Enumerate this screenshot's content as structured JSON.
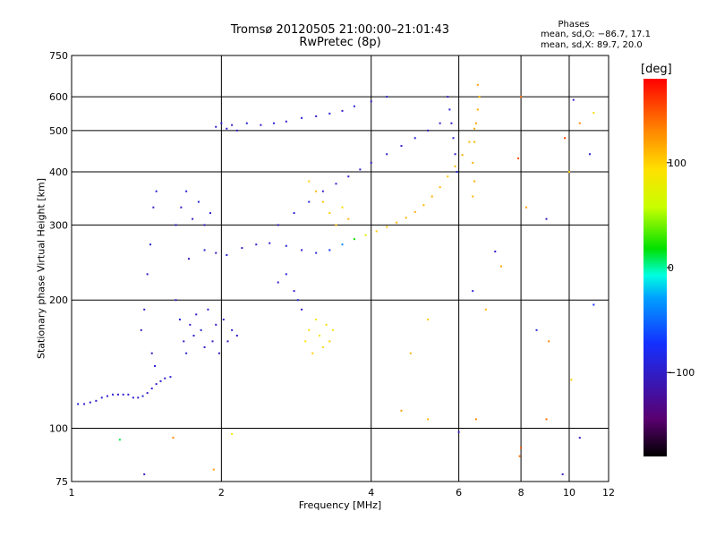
{
  "header": {
    "title_line1": "Tromsø 20120505 21:00:00–21:01:43",
    "title_line2": "RwPretec (8p)"
  },
  "stats": {
    "title": "Phases",
    "line_o": "mean, sd,O: −86.7, 17.1",
    "line_x": "mean, sd,X:  89.7, 20.0"
  },
  "colorbar": {
    "unit": "[deg]",
    "tick_labels": [
      "100",
      "0",
      "−100"
    ],
    "tick_values": [
      100,
      0,
      -100
    ],
    "range": [
      -180,
      180
    ],
    "colors": [
      "#000000",
      "#5a0070",
      "#1430ff",
      "#00a0ff",
      "#00ffe0",
      "#00e000",
      "#c8ff00",
      "#ffe000",
      "#ff8000",
      "#ff0000"
    ]
  },
  "chart_data": {
    "type": "scatter",
    "title": "Tromsø 20120505 21:00:00–21:01:43",
    "subtitle": "RwPretec (8p)",
    "xlabel": "Frequency [MHz]",
    "ylabel": "Stationary phase Virtual Height [km]",
    "x_scale": "log",
    "y_scale": "log",
    "xlim": [
      1,
      12
    ],
    "ylim": [
      75,
      750
    ],
    "x_ticks": [
      1,
      2,
      4,
      6,
      8,
      10,
      12
    ],
    "x_tick_labels": [
      "1",
      "2",
      "4",
      "6",
      "8",
      "10",
      "12"
    ],
    "x_gridlines": [
      2,
      4,
      6,
      8,
      10
    ],
    "y_ticks": [
      75,
      100,
      200,
      300,
      400,
      500,
      600,
      750
    ],
    "y_tick_labels": [
      "75",
      "100",
      "200",
      "300",
      "400",
      "500",
      "600",
      "750"
    ],
    "y_gridlines": [
      100,
      200,
      300,
      400,
      500,
      600
    ],
    "grid": true,
    "color_encodes": "phase [deg]",
    "series": [
      {
        "points": [
          [
            1.03,
            114,
            -95
          ],
          [
            1.06,
            114,
            -100
          ],
          [
            1.09,
            115,
            -95
          ],
          [
            1.12,
            116,
            -100
          ],
          [
            1.15,
            118,
            -95
          ],
          [
            1.18,
            119,
            -100
          ],
          [
            1.21,
            120,
            -95
          ],
          [
            1.24,
            120,
            -100
          ],
          [
            1.27,
            120,
            -95
          ],
          [
            1.3,
            120,
            -100
          ],
          [
            1.33,
            118,
            -95
          ],
          [
            1.36,
            118,
            -100
          ],
          [
            1.39,
            119,
            -95
          ],
          [
            1.42,
            121,
            -100
          ],
          [
            1.45,
            124,
            -95
          ],
          [
            1.48,
            127,
            -100
          ],
          [
            1.51,
            129,
            -95
          ],
          [
            1.54,
            131,
            -100
          ],
          [
            1.58,
            132,
            -95
          ],
          [
            1.38,
            170,
            -100
          ],
          [
            1.4,
            190,
            -95
          ],
          [
            1.42,
            230,
            -100
          ],
          [
            1.44,
            270,
            -95
          ],
          [
            1.46,
            330,
            -100
          ],
          [
            1.48,
            360,
            -95
          ],
          [
            1.45,
            150,
            -100
          ],
          [
            1.47,
            140,
            -95
          ],
          [
            1.62,
            200,
            -100
          ],
          [
            1.65,
            180,
            -95
          ],
          [
            1.68,
            160,
            -100
          ],
          [
            1.7,
            150,
            -95
          ],
          [
            1.73,
            175,
            -100
          ],
          [
            1.76,
            165,
            -95
          ],
          [
            1.78,
            185,
            -100
          ],
          [
            1.82,
            170,
            -95
          ],
          [
            1.85,
            155,
            -100
          ],
          [
            1.88,
            190,
            -95
          ],
          [
            1.92,
            160,
            -100
          ],
          [
            1.95,
            175,
            -95
          ],
          [
            1.98,
            150,
            -100
          ],
          [
            2.02,
            180,
            -95
          ],
          [
            2.06,
            160,
            -100
          ],
          [
            2.1,
            170,
            -95
          ],
          [
            2.15,
            165,
            -100
          ],
          [
            1.62,
            300,
            -95
          ],
          [
            1.66,
            330,
            -100
          ],
          [
            1.7,
            360,
            -95
          ],
          [
            1.75,
            310,
            -100
          ],
          [
            1.8,
            340,
            -95
          ],
          [
            1.85,
            300,
            -100
          ],
          [
            1.9,
            320,
            -95
          ],
          [
            1.72,
            250,
            -100
          ],
          [
            1.85,
            262,
            -95
          ],
          [
            1.95,
            258,
            -100
          ],
          [
            2.05,
            255,
            -95
          ],
          [
            2.2,
            265,
            -100
          ],
          [
            2.35,
            270,
            -95
          ],
          [
            2.5,
            272,
            -100
          ],
          [
            2.7,
            268,
            -95
          ],
          [
            2.9,
            262,
            -100
          ],
          [
            3.1,
            258,
            -90
          ],
          [
            3.3,
            262,
            -70
          ],
          [
            3.5,
            270,
            -40
          ],
          [
            3.7,
            278,
            20
          ],
          [
            3.9,
            284,
            80
          ],
          [
            4.1,
            290,
            100
          ],
          [
            4.3,
            297,
            105
          ],
          [
            4.5,
            304,
            110
          ],
          [
            4.7,
            312,
            110
          ],
          [
            4.9,
            322,
            115
          ],
          [
            5.1,
            334,
            110
          ],
          [
            5.3,
            350,
            115
          ],
          [
            5.5,
            368,
            110
          ],
          [
            5.7,
            390,
            105
          ],
          [
            5.9,
            412,
            110
          ],
          [
            6.1,
            438,
            115
          ],
          [
            6.3,
            470,
            110
          ],
          [
            6.45,
            505,
            115
          ],
          [
            2.6,
            300,
            -100
          ],
          [
            2.8,
            320,
            -95
          ],
          [
            3.0,
            340,
            -90
          ],
          [
            3.2,
            360,
            -100
          ],
          [
            3.4,
            375,
            -95
          ],
          [
            3.6,
            390,
            -100
          ],
          [
            3.8,
            405,
            -95
          ],
          [
            4.0,
            420,
            -100
          ],
          [
            4.3,
            440,
            -95
          ],
          [
            4.6,
            460,
            -100
          ],
          [
            4.9,
            480,
            -95
          ],
          [
            5.2,
            500,
            -100
          ],
          [
            5.5,
            520,
            -95
          ],
          [
            1.95,
            510,
            -100
          ],
          [
            2.0,
            520,
            -95
          ],
          [
            2.05,
            505,
            -100
          ],
          [
            2.1,
            515,
            -95
          ],
          [
            2.15,
            500,
            -100
          ],
          [
            2.25,
            520,
            -95
          ],
          [
            2.4,
            515,
            -100
          ],
          [
            2.55,
            520,
            -95
          ],
          [
            2.7,
            525,
            -100
          ],
          [
            2.9,
            535,
            -95
          ],
          [
            3.1,
            540,
            -100
          ],
          [
            3.3,
            548,
            -95
          ],
          [
            3.5,
            556,
            -100
          ],
          [
            3.7,
            570,
            -95
          ],
          [
            4.0,
            585,
            -100
          ],
          [
            4.3,
            600,
            -95
          ],
          [
            2.95,
            160,
            90
          ],
          [
            3.0,
            170,
            95
          ],
          [
            3.05,
            150,
            100
          ],
          [
            3.1,
            180,
            85
          ],
          [
            3.15,
            165,
            90
          ],
          [
            3.2,
            155,
            95
          ],
          [
            3.25,
            175,
            90
          ],
          [
            3.3,
            160,
            100
          ],
          [
            3.35,
            170,
            85
          ],
          [
            3.0,
            380,
            100
          ],
          [
            3.1,
            360,
            110
          ],
          [
            3.2,
            340,
            105
          ],
          [
            3.3,
            320,
            100
          ],
          [
            3.4,
            300,
            105
          ],
          [
            3.5,
            330,
            95
          ],
          [
            3.6,
            310,
            110
          ],
          [
            6.4,
            420,
            115
          ],
          [
            6.45,
            470,
            110
          ],
          [
            6.5,
            520,
            120
          ],
          [
            6.55,
            560,
            115
          ],
          [
            6.6,
            600,
            110
          ],
          [
            6.55,
            640,
            120
          ],
          [
            6.45,
            380,
            115
          ],
          [
            6.4,
            350,
            110
          ],
          [
            5.7,
            600,
            -100
          ],
          [
            5.75,
            560,
            -95
          ],
          [
            5.8,
            520,
            -100
          ],
          [
            5.85,
            480,
            -95
          ],
          [
            5.9,
            440,
            -100
          ],
          [
            5.95,
            400,
            -95
          ],
          [
            2.8,
            210,
            -100
          ],
          [
            2.85,
            200,
            -95
          ],
          [
            2.9,
            190,
            -100
          ],
          [
            2.7,
            230,
            -95
          ],
          [
            2.6,
            220,
            -100
          ],
          [
            8.0,
            600,
            140
          ],
          [
            7.9,
            430,
            150
          ],
          [
            10.2,
            590,
            -100
          ],
          [
            10.5,
            520,
            130
          ],
          [
            9.8,
            480,
            160
          ],
          [
            11.2,
            550,
            95
          ],
          [
            11.0,
            440,
            -95
          ],
          [
            9.0,
            310,
            -100
          ],
          [
            8.2,
            330,
            120
          ],
          [
            10.0,
            400,
            100
          ],
          [
            7.1,
            260,
            -100
          ],
          [
            7.3,
            240,
            120
          ],
          [
            6.4,
            210,
            -95
          ],
          [
            6.8,
            190,
            110
          ],
          [
            5.2,
            180,
            100
          ],
          [
            4.8,
            150,
            110
          ],
          [
            8.6,
            170,
            -90
          ],
          [
            9.1,
            160,
            130
          ],
          [
            11.2,
            195,
            -70
          ],
          [
            10.1,
            130,
            100
          ],
          [
            4.6,
            110,
            120
          ],
          [
            5.2,
            105,
            110
          ],
          [
            6.0,
            98,
            -95
          ],
          [
            6.5,
            105,
            130
          ],
          [
            8.0,
            90,
            150
          ],
          [
            9.0,
            105,
            140
          ],
          [
            10.5,
            95,
            -100
          ],
          [
            1.6,
            95,
            130
          ],
          [
            2.1,
            97,
            90
          ],
          [
            1.25,
            94,
            10
          ],
          [
            1.4,
            78,
            -100
          ],
          [
            1.93,
            80,
            120
          ],
          [
            9.7,
            78,
            -100
          ],
          [
            7.95,
            86,
            140
          ]
        ]
      }
    ]
  }
}
